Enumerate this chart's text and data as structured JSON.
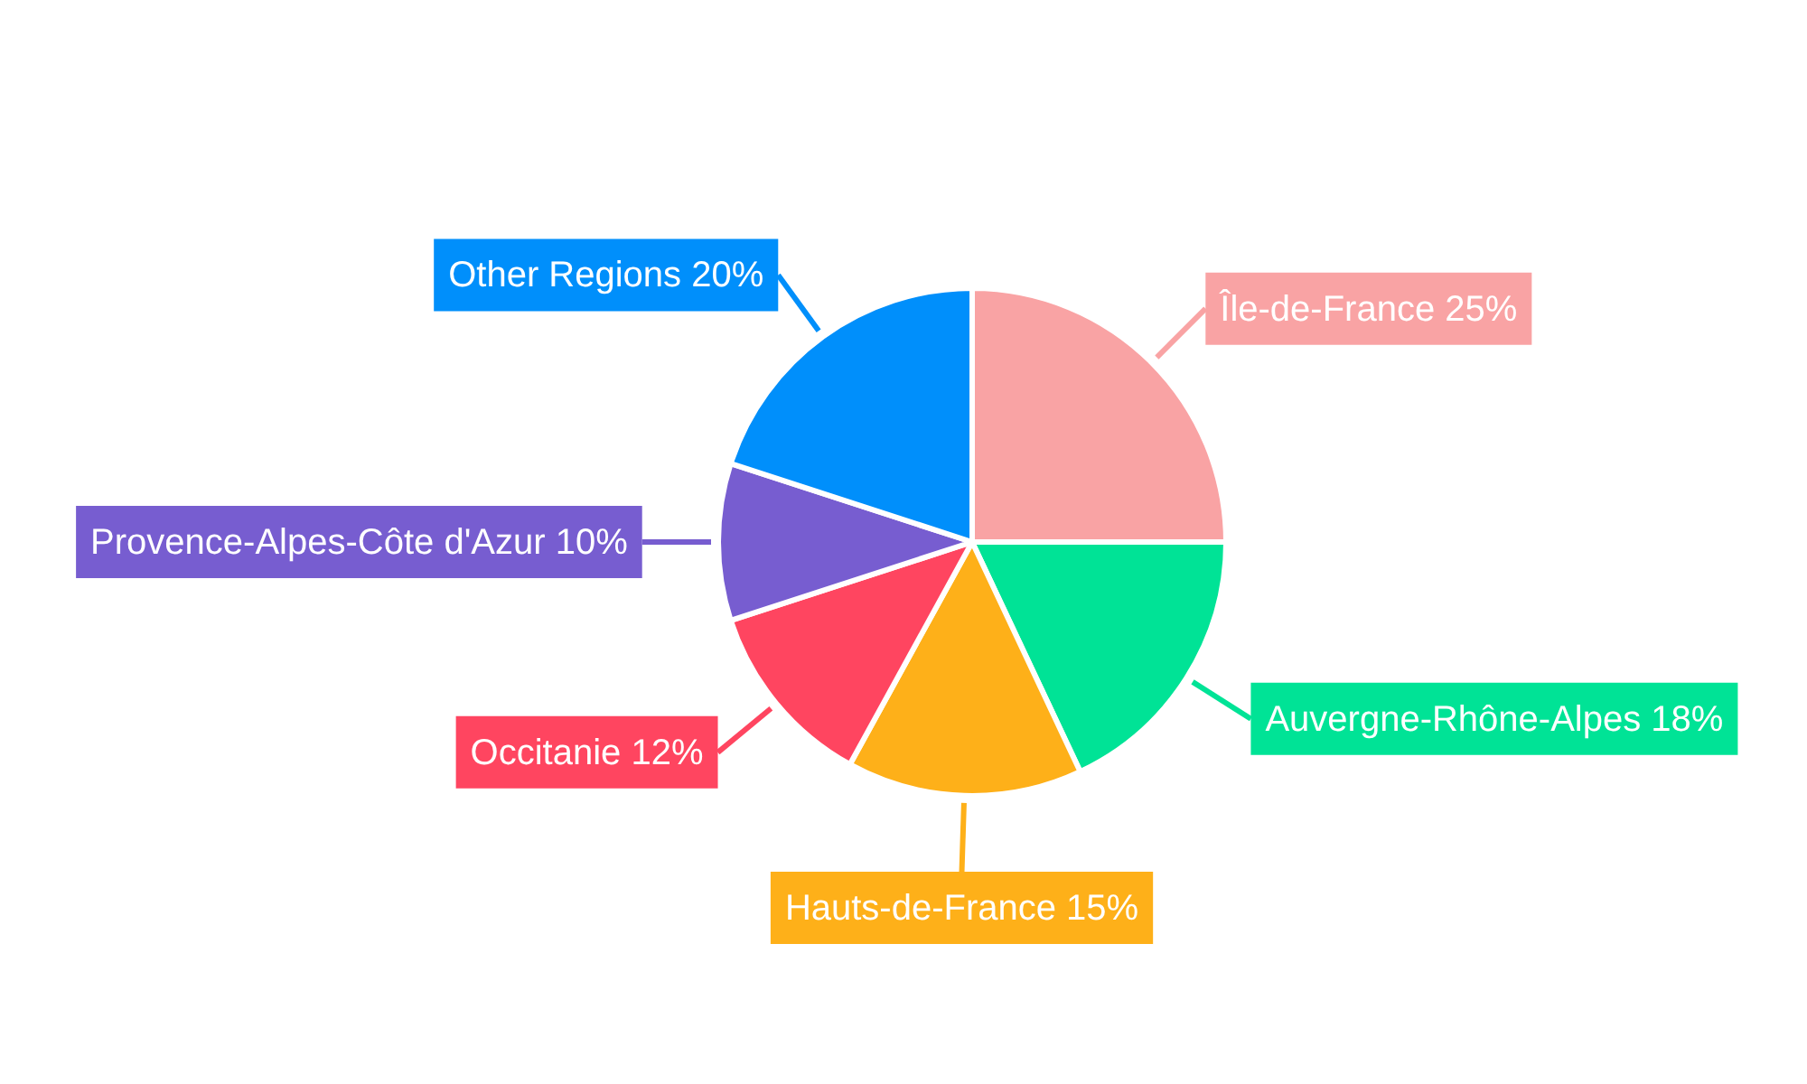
{
  "chart_data": {
    "type": "pie",
    "categories": [
      "Île-de-France",
      "Auvergne-Rhône-Alpes",
      "Hauts-de-France",
      "Occitanie",
      "Provence-Alpes-Côte d'Azur",
      "Other Regions"
    ],
    "values": [
      25,
      18,
      15,
      12,
      10,
      20
    ],
    "value_labels": [
      "25%",
      "18%",
      "15%",
      "12%",
      "10%",
      "20%"
    ],
    "colors": [
      "#f9a3a4",
      "#00e396",
      "#feb019",
      "#ff4560",
      "#775dd0",
      "#008ffb"
    ],
    "legend": false
  }
}
